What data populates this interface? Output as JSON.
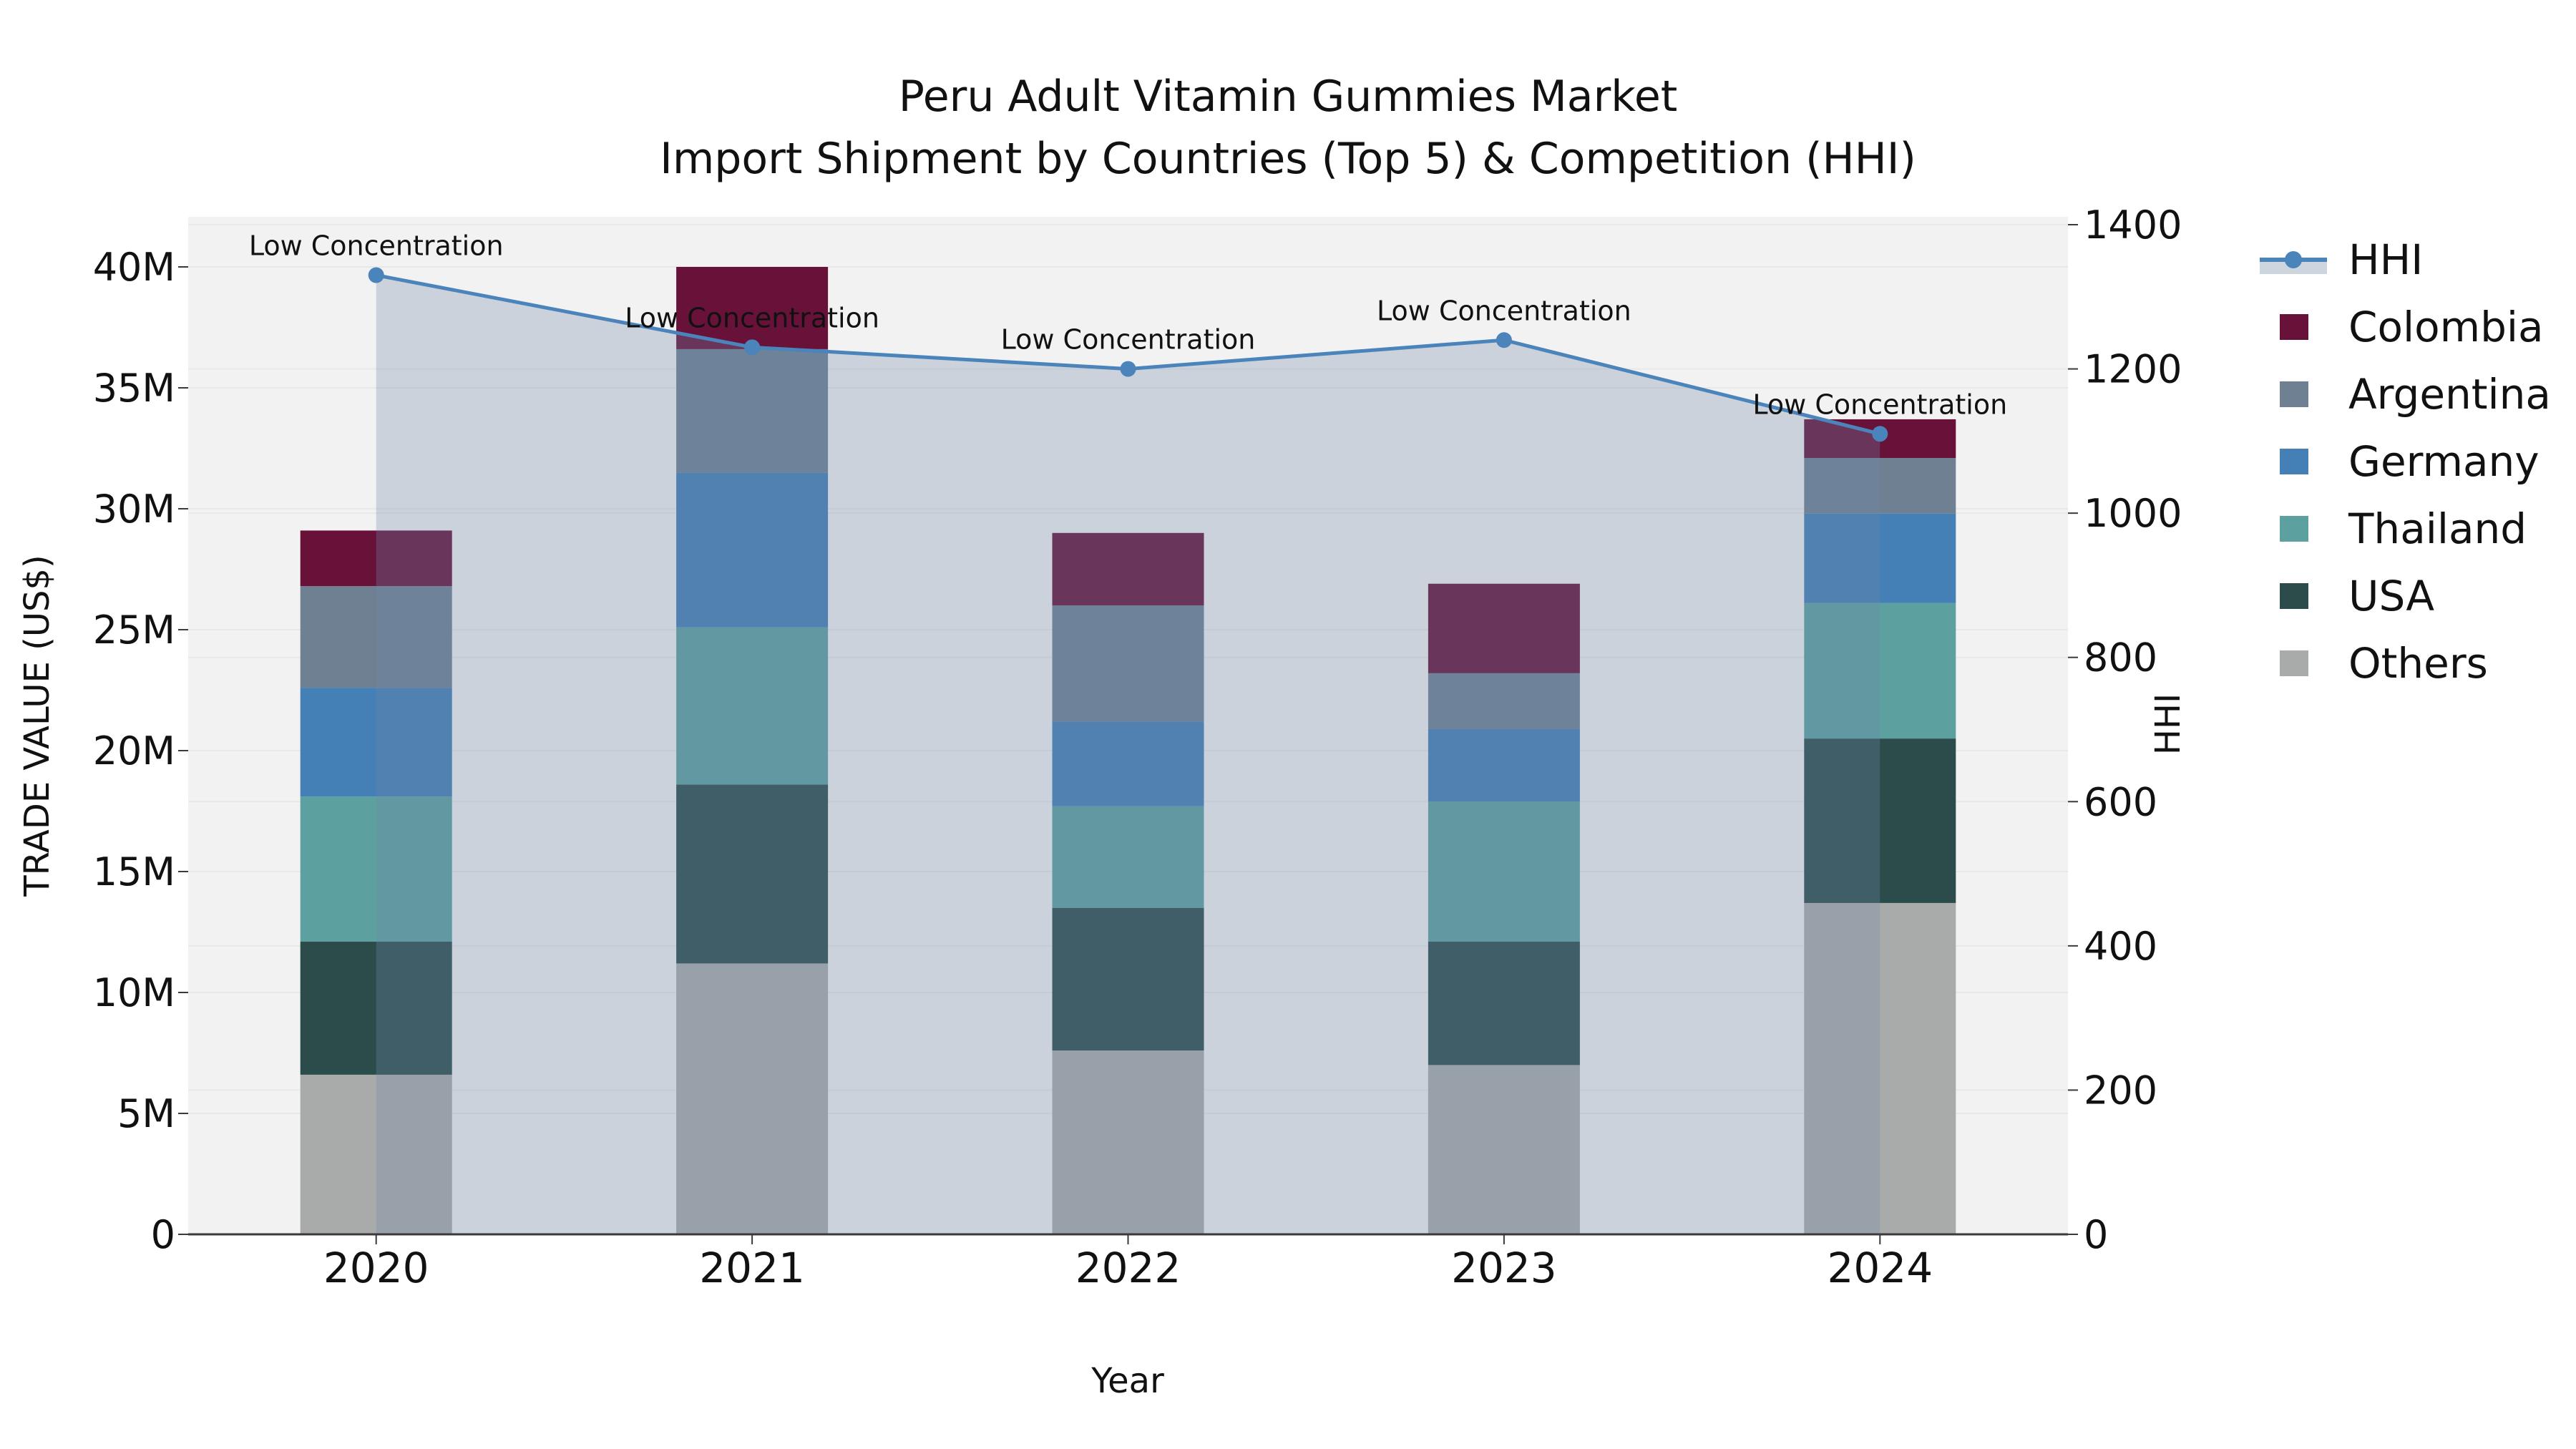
{
  "title": {
    "line1": "Peru Adult Vitamin Gummies Market",
    "line2": "Import Shipment by Countries (Top 5) & Competition (HHI)"
  },
  "colors": {
    "background": "#ffffff",
    "plot_background": "#f2f2f2",
    "gridline": "#e8e8e8",
    "axis_spine": "#3a3a3a",
    "text": "#111111",
    "hhi_line": "#4A84BB",
    "hhi_area_fill": "#7088A9",
    "hhi_area_opacity": 0.3,
    "hhi_legend_band": "#CDD5DE"
  },
  "chart_data": {
    "type": "bar",
    "stacked": true,
    "title": "Peru Adult Vitamin Gummies Market — Import Shipment by Countries (Top 5) & Competition (HHI)",
    "categories": [
      "2020",
      "2021",
      "2022",
      "2023",
      "2024"
    ],
    "bar_unit": "million US$",
    "series": [
      {
        "name": "Others",
        "color": "#A9ABAA",
        "values": [
          6.6,
          11.2,
          7.6,
          7.0,
          13.7
        ]
      },
      {
        "name": "USA",
        "color": "#2C4C4B",
        "values": [
          5.5,
          7.4,
          5.9,
          5.1,
          6.8
        ]
      },
      {
        "name": "Thailand",
        "color": "#5CA0A0",
        "values": [
          6.0,
          6.5,
          4.2,
          5.8,
          5.6
        ]
      },
      {
        "name": "Germany",
        "color": "#447FB5",
        "values": [
          4.5,
          6.4,
          3.5,
          3.0,
          3.7
        ]
      },
      {
        "name": "Argentina",
        "color": "#6E8092",
        "values": [
          4.2,
          5.1,
          4.8,
          2.3,
          2.3
        ]
      },
      {
        "name": "Colombia",
        "color": "#68123A",
        "values": [
          2.3,
          3.4,
          3.0,
          3.7,
          1.6
        ]
      }
    ],
    "bar_totals": [
      29.1,
      40.0,
      29.0,
      26.9,
      33.7
    ],
    "line_series": {
      "name": "HHI",
      "axis": "right",
      "values": [
        1330,
        1230,
        1200,
        1240,
        1110
      ],
      "point_annotations": [
        "Low Concentration",
        "Low Concentration",
        "Low Concentration",
        "Low Concentration",
        "Low Concentration"
      ]
    },
    "y_left": {
      "label": "TRADE VALUE (US$)",
      "min": 0,
      "max": 40,
      "ticks": [
        "0",
        "5M",
        "10M",
        "15M",
        "20M",
        "25M",
        "30M",
        "35M",
        "40M"
      ],
      "tick_values": [
        0,
        5,
        10,
        15,
        20,
        25,
        30,
        35,
        40
      ],
      "grid": true
    },
    "y_right": {
      "label": "HHI",
      "min": 0,
      "max": 1400,
      "ticks": [
        "0",
        "200",
        "400",
        "600",
        "800",
        "1000",
        "1200",
        "1400"
      ],
      "tick_values": [
        0,
        200,
        400,
        600,
        800,
        1000,
        1200,
        1400
      ],
      "grid": true
    },
    "x": {
      "label": "Year"
    },
    "legend": {
      "position": "right",
      "entries": [
        "HHI",
        "Colombia",
        "Argentina",
        "Germany",
        "Thailand",
        "USA",
        "Others"
      ]
    }
  }
}
